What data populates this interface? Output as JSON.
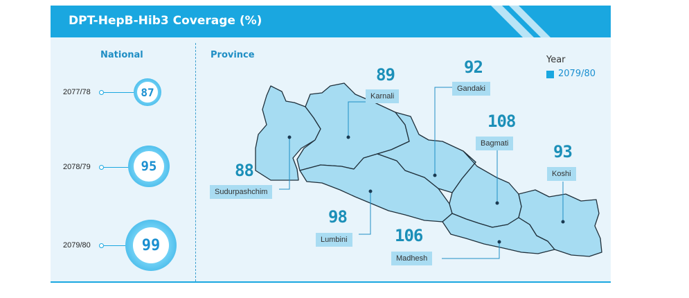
{
  "title": "DPT-HepB-Hib3 Coverage (%)",
  "sections": {
    "national": "National",
    "province": "Province"
  },
  "national": [
    {
      "year": "2077/78",
      "value": "87"
    },
    {
      "year": "2078/79",
      "value": "95"
    },
    {
      "year": "2079/80",
      "value": "99"
    }
  ],
  "provinces": [
    {
      "name": "Karnali",
      "value": "89"
    },
    {
      "name": "Gandaki",
      "value": "92"
    },
    {
      "name": "Bagmati",
      "value": "108"
    },
    {
      "name": "Koshi",
      "value": "93"
    },
    {
      "name": "Sudurpashchim",
      "value": "88"
    },
    {
      "name": "Lumbini",
      "value": "98"
    },
    {
      "name": "Madhesh",
      "value": "106"
    }
  ],
  "legend": {
    "title": "Year",
    "item": "2079/80"
  },
  "colors": {
    "accent": "#1aa7e0",
    "map_fill": "#a6dcf2",
    "map_stroke": "#1f2f3a",
    "label_bg": "#a9dcf2",
    "value_text": "#1b8fb8"
  }
}
